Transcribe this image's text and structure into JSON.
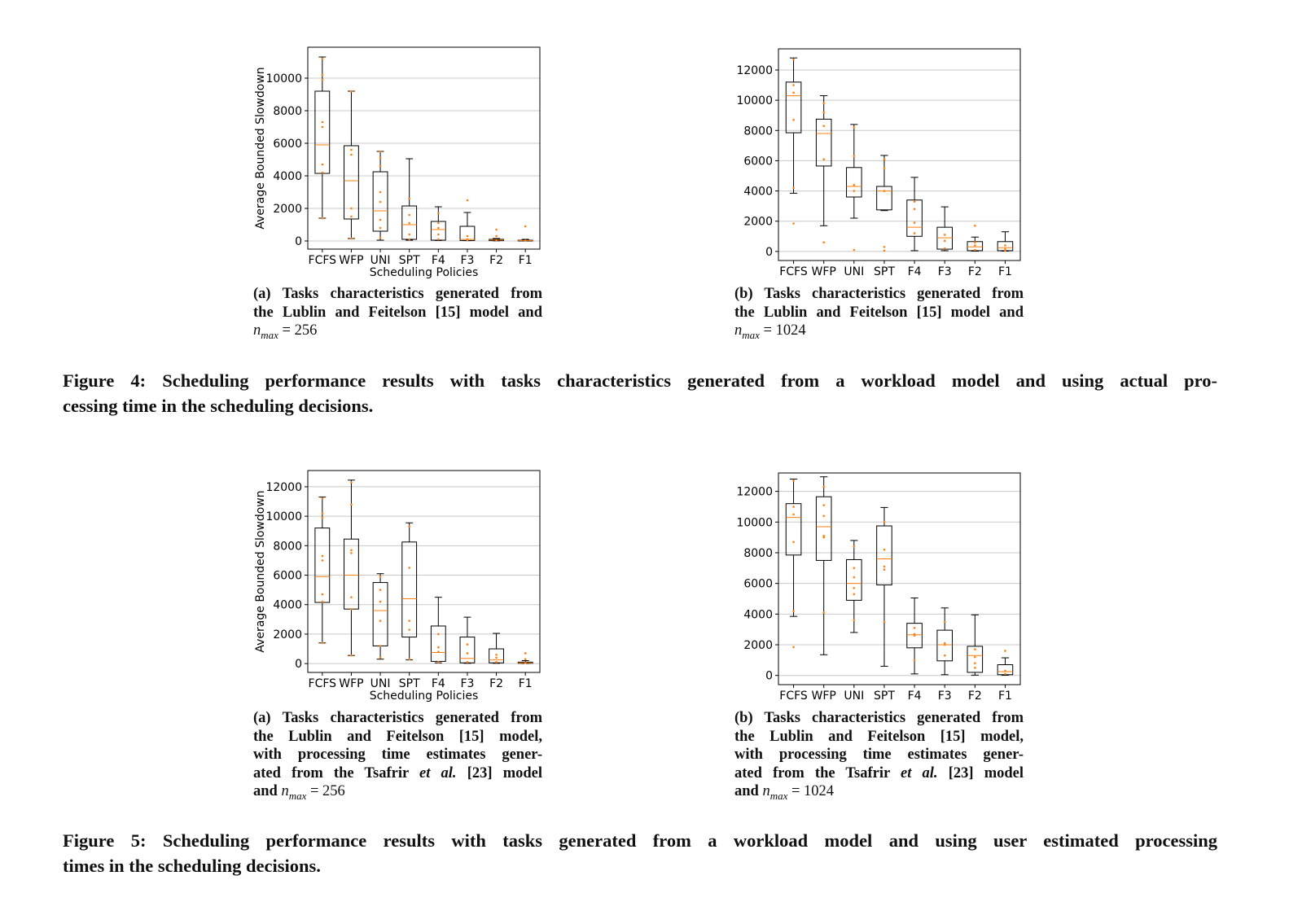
{
  "chart_data": [
    {
      "id": "fig4a",
      "type": "box",
      "title": "",
      "xlabel": "Scheduling Policies",
      "ylabel": "Average Bounded Slowdown",
      "categories": [
        "FCFS",
        "WFP",
        "UNI",
        "SPT",
        "F4",
        "F3",
        "F2",
        "F1"
      ],
      "ylim": [
        -500,
        11900
      ],
      "yticks": [
        0,
        2000,
        4000,
        6000,
        8000,
        10000
      ],
      "ytick_labels": [
        "0",
        "2000",
        "4000",
        "6000",
        "8000",
        "10000"
      ],
      "boxes": [
        {
          "whislo": 1400,
          "q1": 4150,
          "med": 5900,
          "q3": 9200,
          "whishi": 11300,
          "points": [
            1400,
            4200,
            4700,
            7000,
            7300,
            9900,
            10200,
            11200
          ]
        },
        {
          "whislo": 150,
          "q1": 1350,
          "med": 3700,
          "q3": 5850,
          "whishi": 9200,
          "points": [
            150,
            1500,
            2000,
            5300,
            5600,
            9200
          ]
        },
        {
          "whislo": 50,
          "q1": 600,
          "med": 1850,
          "q3": 4250,
          "whishi": 5500,
          "points": [
            200,
            800,
            1300,
            2400,
            3000,
            4600,
            5100,
            5500
          ]
        },
        {
          "whislo": 50,
          "q1": 100,
          "med": 1000,
          "q3": 2150,
          "whishi": 5050,
          "points": [
            100,
            400,
            1100,
            1600,
            2600
          ]
        },
        {
          "whislo": 30,
          "q1": 50,
          "med": 700,
          "q3": 1200,
          "whishi": 2100,
          "points": [
            100,
            400,
            800,
            1100,
            1700
          ]
        },
        {
          "whislo": 20,
          "q1": 30,
          "med": 100,
          "q3": 900,
          "whishi": 1750,
          "points": [
            50,
            100,
            300,
            2500
          ]
        },
        {
          "whislo": 10,
          "q1": 20,
          "med": 60,
          "q3": 100,
          "whishi": 150,
          "points": [
            50,
            300,
            700
          ]
        },
        {
          "whislo": 5,
          "q1": 10,
          "med": 30,
          "q3": 50,
          "whishi": 100,
          "points": [
            20,
            900
          ]
        }
      ]
    },
    {
      "id": "fig4b",
      "type": "box",
      "title": "",
      "xlabel": "",
      "ylabel": "",
      "categories": [
        "FCFS",
        "WFP",
        "UNI",
        "SPT",
        "F4",
        "F3",
        "F2",
        "F1"
      ],
      "ylim": [
        -600,
        13400
      ],
      "yticks": [
        0,
        2000,
        4000,
        6000,
        8000,
        10000,
        12000
      ],
      "ytick_labels": [
        "0",
        "2000",
        "4000",
        "6000",
        "8000",
        "10000",
        "12000"
      ],
      "boxes": [
        {
          "whislo": 3850,
          "q1": 7850,
          "med": 10300,
          "q3": 11200,
          "whishi": 12800,
          "points": [
            1850,
            4200,
            8700,
            10500,
            11000,
            12700
          ]
        },
        {
          "whislo": 1700,
          "q1": 5650,
          "med": 7800,
          "q3": 8750,
          "whishi": 10300,
          "points": [
            600,
            6100,
            8300,
            9200,
            9800
          ]
        },
        {
          "whislo": 2200,
          "q1": 3600,
          "med": 4300,
          "q3": 5550,
          "whishi": 8400,
          "points": [
            100,
            4000,
            4400,
            6300,
            8200
          ]
        },
        {
          "whislo": 2700,
          "q1": 2750,
          "med": 4000,
          "q3": 4300,
          "whishi": 6350,
          "points": [
            50,
            300,
            4000,
            5500,
            6100
          ]
        },
        {
          "whislo": 50,
          "q1": 1000,
          "med": 1600,
          "q3": 3400,
          "whishi": 4900,
          "points": [
            1200,
            1900,
            2800,
            3300
          ]
        },
        {
          "whislo": 50,
          "q1": 150,
          "med": 900,
          "q3": 1600,
          "whishi": 2950,
          "points": [
            200,
            700,
            1100
          ]
        },
        {
          "whislo": 20,
          "q1": 50,
          "med": 300,
          "q3": 650,
          "whishi": 950,
          "points": [
            100,
            400,
            600,
            1700
          ]
        },
        {
          "whislo": 20,
          "q1": 50,
          "med": 250,
          "q3": 650,
          "whishi": 1300,
          "points": [
            50,
            150,
            400
          ]
        }
      ]
    },
    {
      "id": "fig5a",
      "type": "box",
      "title": "",
      "xlabel": "Scheduling Policies",
      "ylabel": "Average Bounded Slowdown",
      "categories": [
        "FCFS",
        "WFP",
        "UNI",
        "SPT",
        "F4",
        "F3",
        "F2",
        "F1"
      ],
      "ylim": [
        -600,
        13100
      ],
      "yticks": [
        0,
        2000,
        4000,
        6000,
        8000,
        10000,
        12000
      ],
      "ytick_labels": [
        "0",
        "2000",
        "4000",
        "6000",
        "8000",
        "10000",
        "12000"
      ],
      "boxes": [
        {
          "whislo": 1400,
          "q1": 4150,
          "med": 5900,
          "q3": 9200,
          "whishi": 11300,
          "points": [
            1400,
            4200,
            4700,
            7000,
            7300,
            9900,
            10200,
            11200
          ]
        },
        {
          "whislo": 550,
          "q1": 3700,
          "med": 6000,
          "q3": 8450,
          "whishi": 12450,
          "points": [
            550,
            3700,
            4500,
            7500,
            7700,
            10800,
            12300
          ]
        },
        {
          "whislo": 300,
          "q1": 1200,
          "med": 3600,
          "q3": 5500,
          "whishi": 6100,
          "points": [
            400,
            1200,
            2900,
            4200,
            5000,
            5900
          ]
        },
        {
          "whislo": 250,
          "q1": 1800,
          "med": 4400,
          "q3": 8250,
          "whishi": 9550,
          "points": [
            300,
            2300,
            2900,
            6500,
            9300
          ]
        },
        {
          "whislo": 50,
          "q1": 150,
          "med": 750,
          "q3": 2550,
          "whishi": 4500,
          "points": [
            100,
            800,
            1100,
            2000
          ]
        },
        {
          "whislo": 20,
          "q1": 50,
          "med": 350,
          "q3": 1800,
          "whishi": 3150,
          "points": [
            100,
            700,
            1300
          ]
        },
        {
          "whislo": 20,
          "q1": 50,
          "med": 250,
          "q3": 1000,
          "whishi": 2050,
          "points": [
            100,
            400,
            600
          ]
        },
        {
          "whislo": 10,
          "q1": 20,
          "med": 50,
          "q3": 100,
          "whishi": 200,
          "points": [
            50,
            300,
            700
          ]
        }
      ]
    },
    {
      "id": "fig5b",
      "type": "box",
      "title": "",
      "xlabel": "",
      "ylabel": "",
      "categories": [
        "FCFS",
        "WFP",
        "UNI",
        "SPT",
        "F4",
        "F3",
        "F2",
        "F1"
      ],
      "ylim": [
        -600,
        13200
      ],
      "yticks": [
        0,
        2000,
        4000,
        6000,
        8000,
        10000,
        12000
      ],
      "ytick_labels": [
        "0",
        "2000",
        "4000",
        "6000",
        "8000",
        "10000",
        "12000"
      ],
      "boxes": [
        {
          "whislo": 3850,
          "q1": 7850,
          "med": 10300,
          "q3": 11200,
          "whishi": 12800,
          "points": [
            1850,
            4200,
            8700,
            10500,
            11000,
            12700
          ]
        },
        {
          "whislo": 1350,
          "q1": 7500,
          "med": 9700,
          "q3": 11650,
          "whishi": 12950,
          "points": [
            4100,
            9000,
            9100,
            10400,
            11100,
            12300
          ]
        },
        {
          "whislo": 2800,
          "q1": 4900,
          "med": 6000,
          "q3": 7550,
          "whishi": 8800,
          "points": [
            3600,
            5300,
            5700,
            6400,
            7000,
            8400
          ]
        },
        {
          "whislo": 600,
          "q1": 5900,
          "med": 7600,
          "q3": 9750,
          "whishi": 10950,
          "points": [
            3500,
            6900,
            7100,
            8200,
            10000
          ]
        },
        {
          "whislo": 100,
          "q1": 1800,
          "med": 2650,
          "q3": 3400,
          "whishi": 5050,
          "points": [
            1000,
            2600,
            2700,
            3100
          ]
        },
        {
          "whislo": 50,
          "q1": 950,
          "med": 2000,
          "q3": 2950,
          "whishi": 4400,
          "points": [
            1300,
            2000,
            2100,
            3500
          ]
        },
        {
          "whislo": 20,
          "q1": 200,
          "med": 1300,
          "q3": 1900,
          "whishi": 3950,
          "points": [
            500,
            800,
            1200,
            1700
          ]
        },
        {
          "whislo": 10,
          "q1": 50,
          "med": 250,
          "q3": 700,
          "whishi": 1150,
          "points": [
            100,
            300,
            1600
          ]
        }
      ]
    }
  ],
  "subcaptions": {
    "fig4a": {
      "prefix": "(a) Tasks characteristics generated from",
      "line2": "the Lublin and Feitelson [15] model and",
      "nmax_base": "n",
      "nmax_sub": "max",
      "nmax_value": " = 256"
    },
    "fig4b": {
      "prefix": "(b) Tasks characteristics generated from",
      "line2": "the Lublin and Feitelson [15] model and",
      "nmax_base": "n",
      "nmax_sub": "max",
      "nmax_value": " = 1024"
    },
    "fig5a": {
      "prefix": "(a) Tasks characteristics generated from",
      "line2": "the Lublin and Feitelson [15] model,",
      "line3": "with processing time estimates gener-",
      "line4_pre": "ated from the Tsafrir ",
      "line4_em": "et al.",
      "line4_post": " [23] model",
      "line5_pre": "and ",
      "nmax_base": "n",
      "nmax_sub": "max",
      "nmax_value": " = 256"
    },
    "fig5b": {
      "prefix": "(b) Tasks characteristics generated from",
      "line2": "the Lublin and Feitelson [15] model,",
      "line3": "with processing time estimates gener-",
      "line4_pre": "ated from the Tsafrir ",
      "line4_em": "et al.",
      "line4_post": " [23] model",
      "line5_pre": "and ",
      "nmax_base": "n",
      "nmax_sub": "max",
      "nmax_value": " = 1024"
    }
  },
  "figure_captions": {
    "fig4_line1": "Figure 4: Scheduling performance results with tasks characteristics generated from a workload model and using actual pro-",
    "fig4_line2": "cessing time in the scheduling decisions.",
    "fig5_line1": "Figure 5: Scheduling performance results with tasks generated from a workload model and using user estimated processing",
    "fig5_line2": "times in the scheduling decisions."
  },
  "colors": {
    "median": "#ff7f0e",
    "points": "#ff7f0e",
    "grid": "#c8c8c8",
    "box": "#000000"
  }
}
